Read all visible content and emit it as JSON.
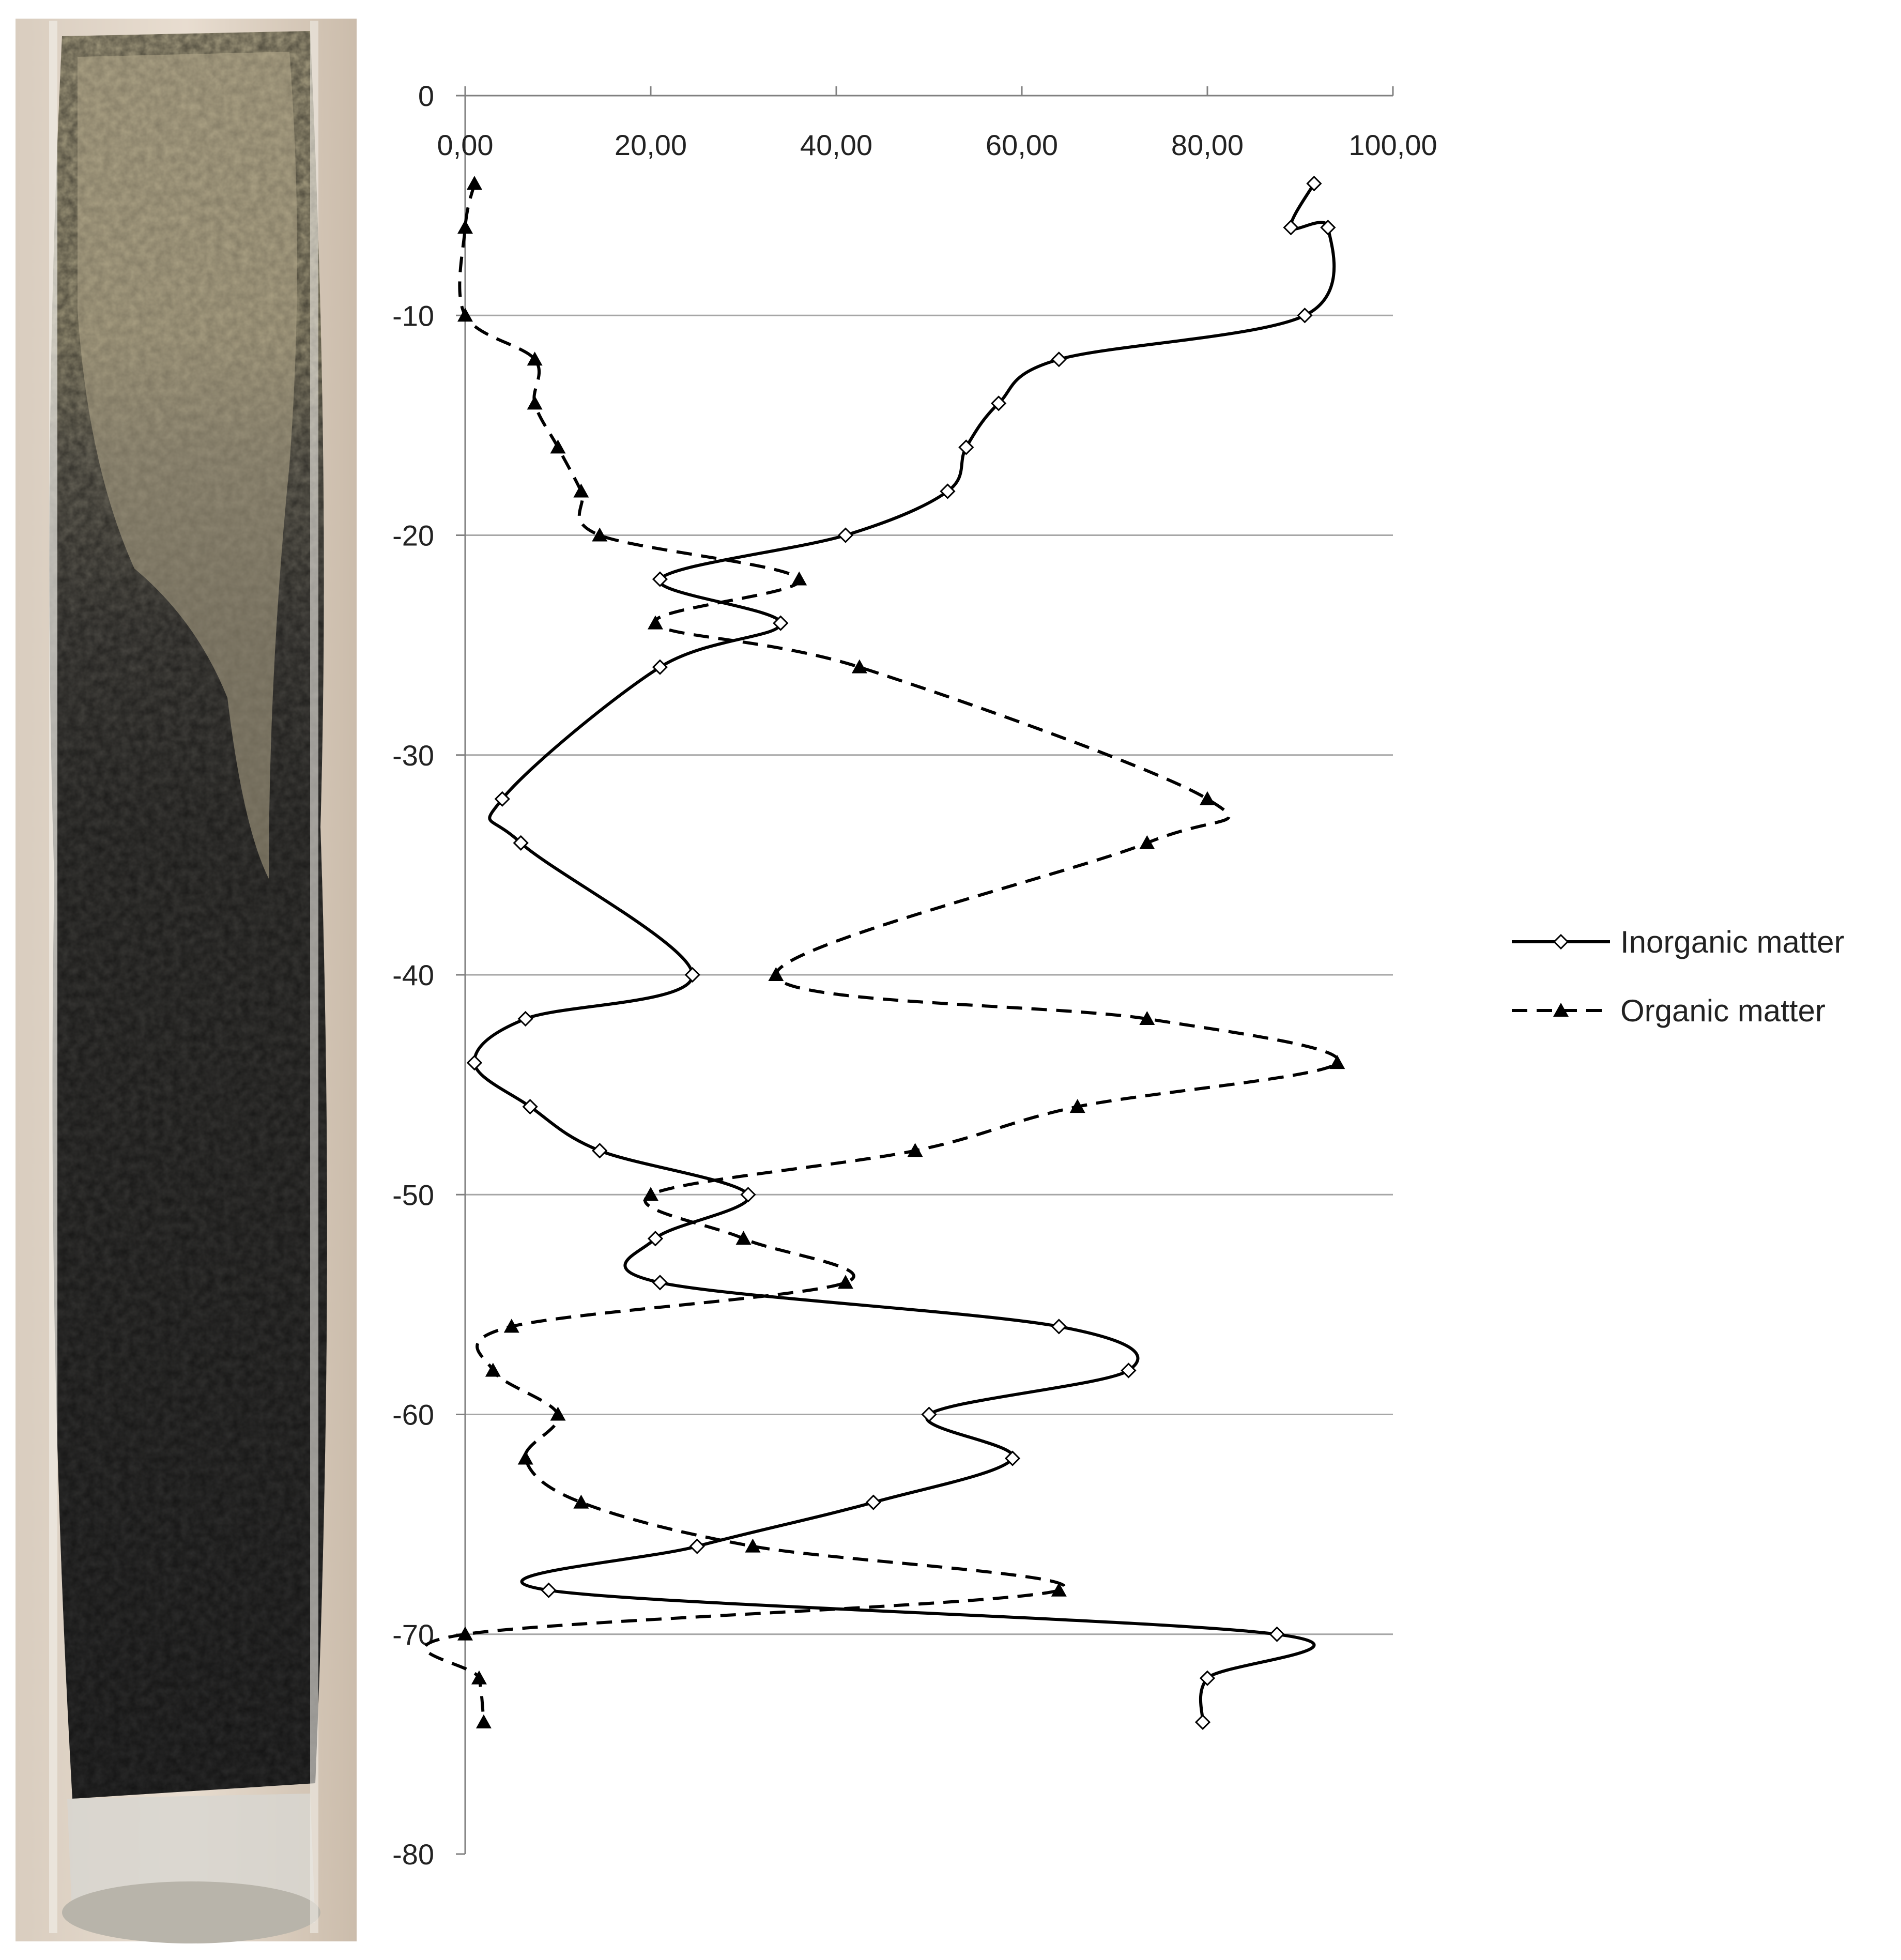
{
  "colors": {
    "line": "#000000",
    "grid": "#a6a6a6",
    "axis": "#808080",
    "core_tube": "#c9b9a4",
    "sand": "#a69a7c",
    "sediment_dark": "#2f2f2f"
  },
  "photo": {
    "description_icon": "soil-core-photo"
  },
  "chart_data": {
    "type": "line",
    "orientation": "vertical-profile",
    "x_ticks": [
      "0,00",
      "20,00",
      "40,00",
      "60,00",
      "80,00",
      "100,00"
    ],
    "y_ticks": [
      "0",
      "-10",
      "-20",
      "-30",
      "-40",
      "-50",
      "-60",
      "-70",
      "-80"
    ],
    "xlim": [
      0,
      100
    ],
    "ylim": [
      -80,
      0
    ],
    "grid": "horizontal",
    "legend": "right",
    "series": [
      {
        "name": "Inorganic matter",
        "style": "solid",
        "marker": "open-diamond",
        "points": [
          [
            91.5,
            -4
          ],
          [
            89,
            -6
          ],
          [
            93,
            -6
          ],
          [
            90.5,
            -10
          ],
          [
            64,
            -12
          ],
          [
            57.5,
            -14
          ],
          [
            54,
            -16
          ],
          [
            52,
            -18
          ],
          [
            41,
            -20
          ],
          [
            21,
            -22
          ],
          [
            34,
            -24
          ],
          [
            21,
            -26
          ],
          [
            4,
            -32
          ],
          [
            6,
            -34
          ],
          [
            24.5,
            -40
          ],
          [
            6.5,
            -42
          ],
          [
            1,
            -44
          ],
          [
            7,
            -46
          ],
          [
            14.5,
            -48
          ],
          [
            30.5,
            -50
          ],
          [
            20.5,
            -52
          ],
          [
            21,
            -54
          ],
          [
            64,
            -56
          ],
          [
            71.5,
            -58
          ],
          [
            50,
            -60
          ],
          [
            59,
            -62
          ],
          [
            44,
            -64
          ],
          [
            25,
            -66
          ],
          [
            9,
            -68
          ],
          [
            87.5,
            -70
          ],
          [
            80,
            -72
          ],
          [
            79.5,
            -74
          ]
        ]
      },
      {
        "name": "Organic matter",
        "style": "dashed",
        "marker": "filled-triangle",
        "points": [
          [
            1,
            -4
          ],
          [
            0,
            -6
          ],
          [
            0,
            -10
          ],
          [
            7.5,
            -12
          ],
          [
            7.5,
            -14
          ],
          [
            10,
            -16
          ],
          [
            12.5,
            -18
          ],
          [
            14.5,
            -20
          ],
          [
            36,
            -22
          ],
          [
            20.5,
            -24
          ],
          [
            42.5,
            -26
          ],
          [
            80,
            -32
          ],
          [
            73.5,
            -34
          ],
          [
            33.5,
            -40
          ],
          [
            73.5,
            -42
          ],
          [
            94,
            -44
          ],
          [
            66,
            -46
          ],
          [
            48.5,
            -48
          ],
          [
            20,
            -50
          ],
          [
            30,
            -52
          ],
          [
            41,
            -54
          ],
          [
            5,
            -56
          ],
          [
            3,
            -58
          ],
          [
            10,
            -60
          ],
          [
            6.5,
            -62
          ],
          [
            12.5,
            -64
          ],
          [
            31,
            -66
          ],
          [
            64,
            -68
          ],
          [
            0,
            -70
          ],
          [
            1.5,
            -72
          ],
          [
            2,
            -74
          ]
        ]
      }
    ]
  }
}
